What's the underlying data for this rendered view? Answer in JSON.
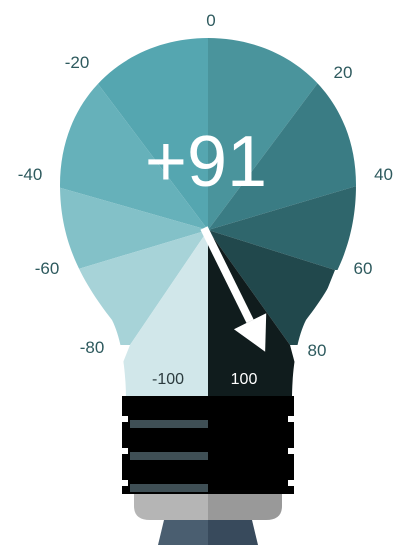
{
  "gauge": {
    "value": 91,
    "value_text": "+91",
    "min": -100,
    "max": 100,
    "tick_labels": [
      "-20",
      "-40",
      "-60",
      "-80",
      "0",
      "20",
      "40",
      "60",
      "80"
    ],
    "bottom_labels": {
      "left": "-100",
      "right": "100"
    },
    "colors": {
      "segments_negative": [
        "#55a6b0",
        "#66b1ba",
        "#83c1c8",
        "#a7d3d8",
        "#d1e7ea"
      ],
      "segments_positive": [
        "#4a949c",
        "#3a7c84",
        "#2f666c",
        "#21484c",
        "#101c1d"
      ],
      "tick_text": "#2e5a5e",
      "needle": "#ffffff",
      "readout": "#ffffff",
      "base_dark": "#000000",
      "base_stripe": "#3f4f55",
      "cap_light": "#b5b5b5",
      "cap_dark": "#999999",
      "tip_light": "#4a5e70",
      "tip_dark": "#384a5c"
    }
  }
}
